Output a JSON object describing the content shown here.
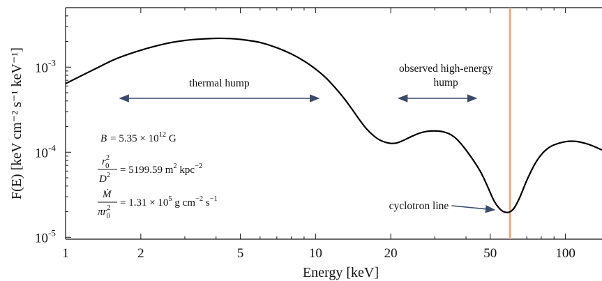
{
  "chart_data": {
    "type": "line",
    "title": "",
    "xlabel": "Energy [keV]",
    "ylabel": "F(E) [keV cm⁻² s⁻¹ keV⁻¹]",
    "x_scale": "log",
    "y_scale": "log",
    "xlim": [
      1,
      140
    ],
    "ylim": [
      9.5e-06,
      0.005
    ],
    "x_ticks": [
      1,
      2,
      5,
      10,
      20,
      50,
      100
    ],
    "x_tick_labels": [
      "1",
      "2",
      "5",
      "10",
      "20",
      "50",
      "100"
    ],
    "y_ticks": [
      1e-05,
      0.0001,
      0.001
    ],
    "y_tick_labels": [
      {
        "base": "10",
        "exp": "-5"
      },
      {
        "base": "10",
        "exp": "-4"
      },
      {
        "base": "10",
        "exp": "-3"
      }
    ],
    "series": [
      {
        "color": "#000000",
        "x": [
          1.0,
          1.3,
          1.6,
          2.0,
          2.5,
          3.0,
          3.5,
          4.0,
          4.5,
          5.0,
          6.0,
          7.0,
          8.0,
          9.0,
          10.0,
          11.0,
          12.0,
          13.0,
          14.0,
          15.0,
          16.0,
          17.0,
          18.0,
          19.0,
          20.0,
          21.0,
          22.0,
          24.0,
          26.0,
          28.0,
          30.0,
          32.0,
          34.0,
          36.0,
          38.0,
          40.0,
          42.0,
          44.0,
          46.0,
          48.0,
          50.0,
          52.0,
          54.0,
          56.0,
          58.0,
          60.0,
          62.0,
          64.0,
          66.0,
          70.0,
          75.0,
          80.0,
          85.0,
          90.0,
          100.0,
          110.0,
          120.0,
          130.0,
          140.0
        ],
        "y": [
          0.00064,
          0.00094,
          0.00126,
          0.00158,
          0.00188,
          0.00206,
          0.00214,
          0.00218,
          0.00217,
          0.00212,
          0.00195,
          0.00169,
          0.00143,
          0.00118,
          0.00095,
          0.00075,
          0.00057,
          0.00043,
          0.00032,
          0.00024,
          0.000188,
          0.000158,
          0.00014,
          0.000131,
          0.000127,
          0.000128,
          0.000134,
          0.000151,
          0.000167,
          0.000176,
          0.000178,
          0.000175,
          0.000166,
          0.00015,
          0.000128,
          0.000106,
          8.7e-05,
          7.1e-05,
          5.7e-05,
          4.4e-05,
          3.35e-05,
          2.62e-05,
          2.24e-05,
          2.03e-05,
          1.96e-05,
          1.99e-05,
          2.16e-05,
          2.52e-05,
          3.05e-05,
          4.65e-05,
          7.05e-05,
          9.35e-05,
          0.000111,
          0.000122,
          0.000133,
          0.000134,
          0.000127,
          0.000117,
          0.000106
        ]
      }
    ],
    "vertical_line": {
      "x": 60.0,
      "color": "#f4a582"
    },
    "annotations": [
      {
        "text": "thermal hump",
        "arrow": "double",
        "x_from": 1.65,
        "x_to": 10.3,
        "y": 0.00043
      },
      {
        "text_line1": "observed high-energy",
        "text_line2": "hump",
        "arrow": "double",
        "x_from": 21.5,
        "x_to": 44.0,
        "y": 0.00043
      },
      {
        "text": "cyclotron line",
        "arrow": "single",
        "x_from": 35.0,
        "y_from": 2.35e-05,
        "x_to": 52.0,
        "y_to": 2.1e-05
      }
    ],
    "parameters": {
      "B_lhs": "B",
      "B_rhs": "= 5.35 × 10",
      "B_exp": "12",
      "B_unit": " G",
      "r_num": "r",
      "r_num_sup": "2",
      "r_num_sub": "0",
      "r_den": "D",
      "r_den_sup": "2",
      "r_rhs": "= 5199.59 m",
      "r_rhs_sup1": "2",
      "r_rhs_mid": " kpc",
      "r_rhs_sup2": "−2",
      "m_num": "Ṁ",
      "m_den": "πr",
      "m_den_sup": "2",
      "m_den_sub": "0",
      "m_rhs": "= 1.31 × 10",
      "m_rhs_exp": "5",
      "m_rhs_unit1": " g cm",
      "m_rhs_sup2": "−2",
      "m_rhs_unit2": " s",
      "m_rhs_sup3": "−1"
    }
  },
  "colors": {
    "curve": "#000000",
    "cyclotron_line": "#f4a582",
    "arrow": "#3b4a6b",
    "frame": "#111111"
  }
}
